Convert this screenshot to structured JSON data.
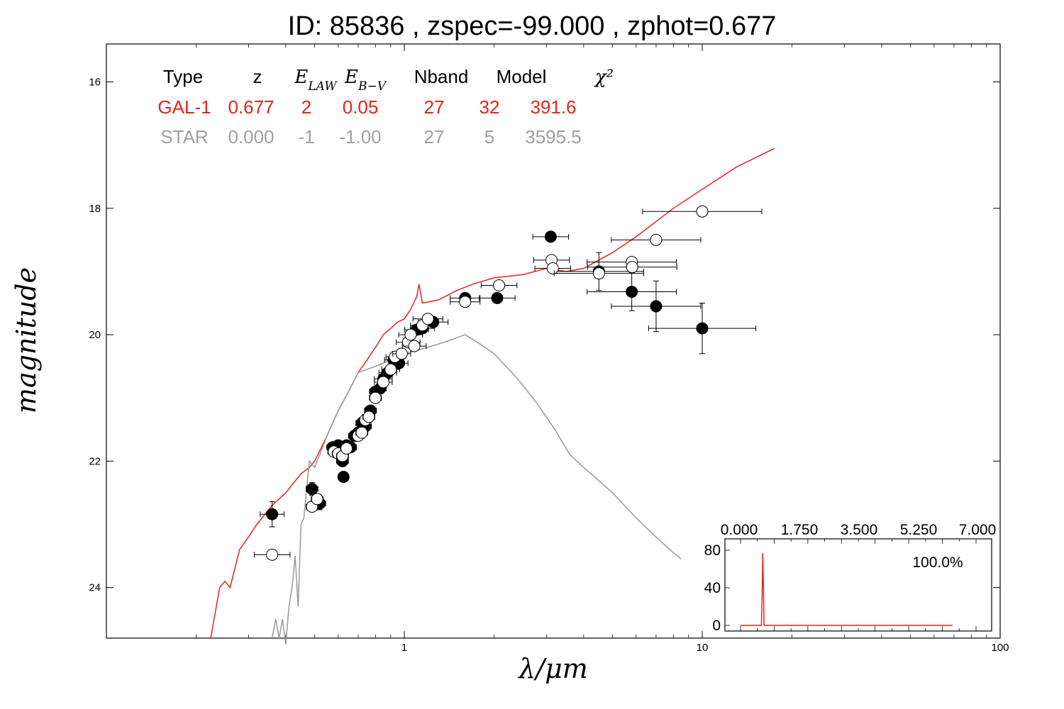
{
  "chart_data": {
    "type": "scatter",
    "title": "ID:  85836 , zspec=-99.000 , zphot=0.677",
    "xlabel": "λ/μm",
    "ylabel": "magnitude",
    "x_scale": "log",
    "xlim": [
      0.1,
      100
    ],
    "ylim": [
      24.8,
      15.4
    ],
    "x_tick_labels": [
      "1",
      "10",
      "100"
    ],
    "y_tick_labels": [
      "16",
      "18",
      "20",
      "22",
      "24"
    ],
    "y_ticks": [
      16,
      18,
      20,
      22,
      24
    ],
    "table": {
      "headers": [
        "Type",
        "z",
        "E_LAW",
        "E_B−V",
        "Nband",
        "Model",
        "χ²"
      ],
      "rows": [
        {
          "color": "#e8231c",
          "cells": [
            "GAL-1",
            "0.677",
            "2",
            "0.05",
            "27",
            "32",
            "391.6"
          ]
        },
        {
          "color": "#a0a0a0",
          "cells": [
            "STAR",
            "0.000",
            "-1",
            "-1.00",
            "27",
            "5",
            "3595.5"
          ]
        }
      ]
    },
    "series": [
      {
        "name": "GAL-1",
        "kind": "line",
        "color": "#e8231c",
        "points": [
          [
            0.224,
            24.8
          ],
          [
            0.24,
            24.0
          ],
          [
            0.25,
            23.9
          ],
          [
            0.26,
            24.0
          ],
          [
            0.28,
            23.4
          ],
          [
            0.3,
            23.2
          ],
          [
            0.32,
            23.0
          ],
          [
            0.36,
            22.7
          ],
          [
            0.4,
            22.5
          ],
          [
            0.45,
            22.2
          ],
          [
            0.48,
            22.1
          ],
          [
            0.5,
            22.0
          ],
          [
            0.55,
            21.6
          ],
          [
            0.6,
            21.2
          ],
          [
            0.65,
            20.9
          ],
          [
            0.7,
            20.6
          ],
          [
            0.75,
            20.4
          ],
          [
            0.8,
            20.2
          ],
          [
            0.85,
            20.0
          ],
          [
            0.9,
            19.9
          ],
          [
            0.95,
            19.8
          ],
          [
            1.0,
            19.75
          ],
          [
            1.05,
            19.6
          ],
          [
            1.1,
            19.4
          ],
          [
            1.12,
            19.2
          ],
          [
            1.15,
            19.5
          ],
          [
            1.3,
            19.45
          ],
          [
            1.5,
            19.3
          ],
          [
            1.7,
            19.2
          ],
          [
            2.0,
            19.1
          ],
          [
            2.5,
            19.05
          ],
          [
            3.0,
            18.95
          ],
          [
            3.5,
            19.0
          ],
          [
            4.0,
            18.95
          ],
          [
            5.0,
            18.7
          ],
          [
            6.0,
            18.45
          ],
          [
            8.0,
            18.0
          ],
          [
            10.0,
            17.7
          ],
          [
            13.0,
            17.35
          ],
          [
            17.5,
            17.05
          ]
        ]
      },
      {
        "name": "STAR",
        "kind": "line",
        "color": "#999999",
        "points": [
          [
            0.36,
            24.8
          ],
          [
            0.37,
            24.5
          ],
          [
            0.38,
            24.8
          ],
          [
            0.39,
            24.5
          ],
          [
            0.4,
            24.9
          ],
          [
            0.41,
            24.3
          ],
          [
            0.42,
            24.0
          ],
          [
            0.43,
            23.5
          ],
          [
            0.44,
            24.3
          ],
          [
            0.45,
            23.0
          ],
          [
            0.46,
            22.9
          ],
          [
            0.48,
            22.0
          ],
          [
            0.5,
            22.1
          ],
          [
            0.52,
            21.9
          ],
          [
            0.55,
            21.6
          ],
          [
            0.6,
            21.2
          ],
          [
            0.65,
            20.9
          ],
          [
            0.7,
            20.6
          ],
          [
            0.8,
            20.5
          ],
          [
            0.9,
            20.4
          ],
          [
            1.0,
            20.3
          ],
          [
            1.2,
            20.2
          ],
          [
            1.4,
            20.1
          ],
          [
            1.6,
            20.0
          ],
          [
            1.8,
            20.15
          ],
          [
            2.0,
            20.3
          ],
          [
            2.3,
            20.6
          ],
          [
            2.5,
            20.8
          ],
          [
            2.8,
            21.1
          ],
          [
            3.2,
            21.5
          ],
          [
            3.6,
            21.9
          ],
          [
            4.0,
            22.1
          ],
          [
            5.0,
            22.5
          ],
          [
            6.0,
            22.9
          ],
          [
            7.0,
            23.2
          ],
          [
            8.0,
            23.45
          ],
          [
            8.5,
            23.55
          ]
        ]
      },
      {
        "name": "observed",
        "kind": "points",
        "fill": "#000000",
        "points": [
          [
            0.36,
            22.84,
            0.04,
            0.2
          ],
          [
            0.49,
            22.44,
            0.02,
            0.1
          ],
          [
            0.52,
            22.67,
            0.02,
            0.1
          ],
          [
            0.575,
            21.78,
            0.02,
            0
          ],
          [
            0.6,
            21.75,
            0.02,
            0
          ],
          [
            0.62,
            22.0,
            0.02,
            0
          ],
          [
            0.625,
            22.25,
            0,
            0
          ],
          [
            0.64,
            21.75,
            0.02,
            0
          ],
          [
            0.66,
            21.78,
            0.02,
            0
          ],
          [
            0.68,
            21.6,
            0.02,
            0
          ],
          [
            0.7,
            21.55,
            0.02,
            0
          ],
          [
            0.72,
            21.4,
            0.02,
            0
          ],
          [
            0.74,
            21.45,
            0.02,
            0
          ],
          [
            0.77,
            21.2,
            0.02,
            0
          ],
          [
            0.8,
            20.9,
            0.02,
            0
          ],
          [
            0.83,
            20.85,
            0.02,
            0
          ],
          [
            0.85,
            20.7,
            0.03,
            0
          ],
          [
            0.88,
            20.6,
            0.03,
            0
          ],
          [
            0.92,
            20.4,
            0.03,
            0
          ],
          [
            0.96,
            20.45,
            0.03,
            0
          ],
          [
            1.1,
            19.92,
            0.04,
            0
          ],
          [
            1.15,
            19.9,
            0.04,
            0
          ],
          [
            1.25,
            19.8,
            0.05,
            0
          ],
          [
            1.6,
            19.42,
            0.05,
            0
          ],
          [
            2.05,
            19.42,
            0.06,
            0
          ],
          [
            3.1,
            18.45,
            0.06,
            0
          ],
          [
            4.5,
            19.0,
            0.15,
            0.3
          ],
          [
            5.8,
            19.32,
            0.15,
            0.3
          ],
          [
            7.0,
            19.55,
            0.15,
            0.4
          ],
          [
            10.0,
            19.9,
            0.18,
            0.4
          ]
        ]
      },
      {
        "name": "model",
        "kind": "points",
        "fill": "#ffffff",
        "points": [
          [
            0.36,
            23.48,
            0.06,
            0
          ],
          [
            0.49,
            22.72,
            0.02,
            0
          ],
          [
            0.51,
            22.6,
            0.02,
            0
          ],
          [
            0.58,
            21.85,
            0.02,
            0
          ],
          [
            0.6,
            21.88,
            0.02,
            0
          ],
          [
            0.62,
            21.92,
            0.02,
            0
          ],
          [
            0.64,
            21.8,
            0.02,
            0
          ],
          [
            0.7,
            21.6,
            0.02,
            0
          ],
          [
            0.72,
            21.55,
            0.02,
            0
          ],
          [
            0.74,
            21.35,
            0.02,
            0
          ],
          [
            0.76,
            21.3,
            0.02,
            0
          ],
          [
            0.8,
            21.0,
            0.02,
            0
          ],
          [
            0.85,
            20.75,
            0.03,
            0
          ],
          [
            0.9,
            20.55,
            0.03,
            0
          ],
          [
            0.93,
            20.35,
            0.03,
            0
          ],
          [
            0.98,
            20.3,
            0.03,
            0
          ],
          [
            1.03,
            20.12,
            0.04,
            0
          ],
          [
            1.05,
            20.0,
            0.04,
            0
          ],
          [
            1.08,
            20.18,
            0.04,
            0
          ],
          [
            1.15,
            19.85,
            0.04,
            0
          ],
          [
            1.2,
            19.75,
            0.05,
            0
          ],
          [
            1.6,
            19.48,
            0.05,
            0
          ],
          [
            2.08,
            19.22,
            0.06,
            0
          ],
          [
            3.12,
            18.82,
            0.06,
            0
          ],
          [
            3.15,
            18.95,
            0.06,
            0
          ],
          [
            4.5,
            19.03,
            0.15,
            0
          ],
          [
            5.8,
            18.85,
            0.15,
            0
          ],
          [
            5.82,
            18.93,
            0.15,
            0
          ],
          [
            7.0,
            18.5,
            0.15,
            0
          ],
          [
            10.0,
            18.05,
            0.2,
            0
          ]
        ]
      }
    ],
    "inset": {
      "x_tick_labels": [
        "0.000",
        "1.750",
        "3.500",
        "5.250",
        "7.000"
      ],
      "y_tick_labels": [
        "0",
        "40",
        "80"
      ],
      "xlim": [
        0,
        7
      ],
      "ylim": [
        -5,
        90
      ],
      "annotation": "100.0%",
      "pdf": [
        [
          0.0,
          0
        ],
        [
          0.62,
          0
        ],
        [
          0.64,
          30
        ],
        [
          0.66,
          77
        ],
        [
          0.68,
          40
        ],
        [
          0.7,
          0
        ],
        [
          6.3,
          0
        ]
      ],
      "color": "#e8231c"
    }
  }
}
